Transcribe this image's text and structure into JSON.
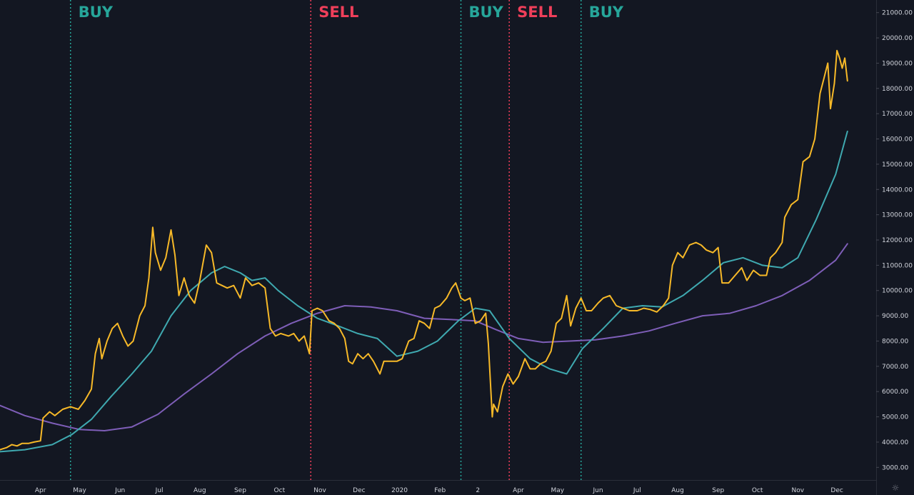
{
  "chart_data": {
    "type": "line",
    "title": "",
    "xlabel": "",
    "ylabel": "",
    "ylim": [
      2500,
      21500
    ],
    "x_range": [
      "2019-03-01",
      "2020-12-31"
    ],
    "y_ticks": [
      "3000.00",
      "4000.00",
      "5000.00",
      "6000.00",
      "7000.00",
      "8000.00",
      "9000.00",
      "10000.00",
      "11000.00",
      "12000.00",
      "13000.00",
      "14000.00",
      "15000.00",
      "16000.00",
      "17000.00",
      "18000.00",
      "19000.00",
      "20000.00",
      "21000.00"
    ],
    "x_ticks": [
      {
        "date": "2019-04-01",
        "label": "Apr"
      },
      {
        "date": "2019-05-01",
        "label": "May"
      },
      {
        "date": "2019-06-01",
        "label": "Jun"
      },
      {
        "date": "2019-07-01",
        "label": "Jul"
      },
      {
        "date": "2019-08-01",
        "label": "Aug"
      },
      {
        "date": "2019-09-01",
        "label": "Sep"
      },
      {
        "date": "2019-10-01",
        "label": "Oct"
      },
      {
        "date": "2019-11-01",
        "label": "Nov"
      },
      {
        "date": "2019-12-01",
        "label": "Dec"
      },
      {
        "date": "2020-01-01",
        "label": "2020"
      },
      {
        "date": "2020-02-01",
        "label": "Feb"
      },
      {
        "date": "2020-03-01",
        "label": "2"
      },
      {
        "date": "2020-04-01",
        "label": "Apr"
      },
      {
        "date": "2020-05-01",
        "label": "May"
      },
      {
        "date": "2020-06-01",
        "label": "Jun"
      },
      {
        "date": "2020-07-01",
        "label": "Jul"
      },
      {
        "date": "2020-08-01",
        "label": "Aug"
      },
      {
        "date": "2020-09-01",
        "label": "Sep"
      },
      {
        "date": "2020-10-01",
        "label": "Oct"
      },
      {
        "date": "2020-11-01",
        "label": "Nov"
      },
      {
        "date": "2020-12-01",
        "label": "Dec"
      }
    ],
    "signals": [
      {
        "label": "BUY",
        "date": "2019-04-24",
        "color": "#26a69a"
      },
      {
        "label": "SELL",
        "date": "2019-10-25",
        "color": "#ef3f5a"
      },
      {
        "label": "BUY",
        "date": "2020-02-17",
        "color": "#26a69a"
      },
      {
        "label": "SELL",
        "date": "2020-03-25",
        "color": "#ef3f5a"
      },
      {
        "label": "BUY",
        "date": "2020-05-19",
        "color": "#26a69a"
      }
    ],
    "series": [
      {
        "color": "#f7b928",
        "points": [
          [
            "2019-03-01",
            3700
          ],
          [
            "2019-03-06",
            3780
          ],
          [
            "2019-03-10",
            3900
          ],
          [
            "2019-03-14",
            3850
          ],
          [
            "2019-03-18",
            3950
          ],
          [
            "2019-03-23",
            3950
          ],
          [
            "2019-03-27",
            4000
          ],
          [
            "2019-04-01",
            4050
          ],
          [
            "2019-04-03",
            4950
          ],
          [
            "2019-04-08",
            5200
          ],
          [
            "2019-04-12",
            5050
          ],
          [
            "2019-04-18",
            5300
          ],
          [
            "2019-04-24",
            5400
          ],
          [
            "2019-04-30",
            5300
          ],
          [
            "2019-05-05",
            5650
          ],
          [
            "2019-05-10",
            6100
          ],
          [
            "2019-05-13",
            7500
          ],
          [
            "2019-05-16",
            8100
          ],
          [
            "2019-05-18",
            7300
          ],
          [
            "2019-05-22",
            8000
          ],
          [
            "2019-05-26",
            8500
          ],
          [
            "2019-05-30",
            8700
          ],
          [
            "2019-06-03",
            8200
          ],
          [
            "2019-06-07",
            7800
          ],
          [
            "2019-06-11",
            8000
          ],
          [
            "2019-06-16",
            9000
          ],
          [
            "2019-06-20",
            9400
          ],
          [
            "2019-06-23",
            10500
          ],
          [
            "2019-06-26",
            12500
          ],
          [
            "2019-06-28",
            11500
          ],
          [
            "2019-07-02",
            10800
          ],
          [
            "2019-07-06",
            11300
          ],
          [
            "2019-07-10",
            12400
          ],
          [
            "2019-07-13",
            11400
          ],
          [
            "2019-07-16",
            9800
          ],
          [
            "2019-07-20",
            10500
          ],
          [
            "2019-07-24",
            9800
          ],
          [
            "2019-07-28",
            9500
          ],
          [
            "2019-08-01",
            10400
          ],
          [
            "2019-08-06",
            11800
          ],
          [
            "2019-08-10",
            11500
          ],
          [
            "2019-08-14",
            10300
          ],
          [
            "2019-08-18",
            10200
          ],
          [
            "2019-08-22",
            10100
          ],
          [
            "2019-08-27",
            10200
          ],
          [
            "2019-09-01",
            9700
          ],
          [
            "2019-09-05",
            10500
          ],
          [
            "2019-09-10",
            10200
          ],
          [
            "2019-09-15",
            10300
          ],
          [
            "2019-09-20",
            10100
          ],
          [
            "2019-09-24",
            8500
          ],
          [
            "2019-09-28",
            8200
          ],
          [
            "2019-10-02",
            8300
          ],
          [
            "2019-10-08",
            8200
          ],
          [
            "2019-10-12",
            8300
          ],
          [
            "2019-10-16",
            8000
          ],
          [
            "2019-10-20",
            8200
          ],
          [
            "2019-10-24",
            7500
          ],
          [
            "2019-10-26",
            9200
          ],
          [
            "2019-10-30",
            9300
          ],
          [
            "2019-11-03",
            9200
          ],
          [
            "2019-11-08",
            8800
          ],
          [
            "2019-11-12",
            8700
          ],
          [
            "2019-11-16",
            8500
          ],
          [
            "2019-11-20",
            8100
          ],
          [
            "2019-11-23",
            7200
          ],
          [
            "2019-11-26",
            7100
          ],
          [
            "2019-11-30",
            7500
          ],
          [
            "2019-12-04",
            7300
          ],
          [
            "2019-12-08",
            7500
          ],
          [
            "2019-12-12",
            7200
          ],
          [
            "2019-12-17",
            6700
          ],
          [
            "2019-12-20",
            7200
          ],
          [
            "2019-12-25",
            7200
          ],
          [
            "2019-12-30",
            7200
          ],
          [
            "2020-01-03",
            7300
          ],
          [
            "2020-01-08",
            8000
          ],
          [
            "2020-01-12",
            8100
          ],
          [
            "2020-01-16",
            8800
          ],
          [
            "2020-01-20",
            8700
          ],
          [
            "2020-01-24",
            8500
          ],
          [
            "2020-01-28",
            9300
          ],
          [
            "2020-02-01",
            9400
          ],
          [
            "2020-02-06",
            9700
          ],
          [
            "2020-02-10",
            10100
          ],
          [
            "2020-02-13",
            10300
          ],
          [
            "2020-02-17",
            9700
          ],
          [
            "2020-02-20",
            9600
          ],
          [
            "2020-02-24",
            9700
          ],
          [
            "2020-02-28",
            8700
          ],
          [
            "2020-03-03",
            8800
          ],
          [
            "2020-03-07",
            9100
          ],
          [
            "2020-03-09",
            7900
          ],
          [
            "2020-03-12",
            5000
          ],
          [
            "2020-03-13",
            5500
          ],
          [
            "2020-03-16",
            5200
          ],
          [
            "2020-03-20",
            6200
          ],
          [
            "2020-03-24",
            6700
          ],
          [
            "2020-03-28",
            6300
          ],
          [
            "2020-04-01",
            6600
          ],
          [
            "2020-04-06",
            7300
          ],
          [
            "2020-04-10",
            6900
          ],
          [
            "2020-04-14",
            6900
          ],
          [
            "2020-04-18",
            7100
          ],
          [
            "2020-04-22",
            7200
          ],
          [
            "2020-04-26",
            7600
          ],
          [
            "2020-04-30",
            8700
          ],
          [
            "2020-05-04",
            8900
          ],
          [
            "2020-05-08",
            9800
          ],
          [
            "2020-05-11",
            8600
          ],
          [
            "2020-05-15",
            9300
          ],
          [
            "2020-05-19",
            9700
          ],
          [
            "2020-05-23",
            9200
          ],
          [
            "2020-05-27",
            9200
          ],
          [
            "2020-06-01",
            9500
          ],
          [
            "2020-06-05",
            9700
          ],
          [
            "2020-06-10",
            9800
          ],
          [
            "2020-06-15",
            9400
          ],
          [
            "2020-06-20",
            9300
          ],
          [
            "2020-06-25",
            9200
          ],
          [
            "2020-07-01",
            9200
          ],
          [
            "2020-07-06",
            9300
          ],
          [
            "2020-07-11",
            9250
          ],
          [
            "2020-07-16",
            9150
          ],
          [
            "2020-07-21",
            9400
          ],
          [
            "2020-07-25",
            9700
          ],
          [
            "2020-07-28",
            11000
          ],
          [
            "2020-08-01",
            11500
          ],
          [
            "2020-08-05",
            11300
          ],
          [
            "2020-08-10",
            11800
          ],
          [
            "2020-08-15",
            11900
          ],
          [
            "2020-08-19",
            11800
          ],
          [
            "2020-08-23",
            11600
          ],
          [
            "2020-08-28",
            11500
          ],
          [
            "2020-09-01",
            11700
          ],
          [
            "2020-09-04",
            10300
          ],
          [
            "2020-09-09",
            10300
          ],
          [
            "2020-09-14",
            10600
          ],
          [
            "2020-09-19",
            10900
          ],
          [
            "2020-09-23",
            10400
          ],
          [
            "2020-09-28",
            10800
          ],
          [
            "2020-10-03",
            10600
          ],
          [
            "2020-10-08",
            10600
          ],
          [
            "2020-10-11",
            11300
          ],
          [
            "2020-10-15",
            11500
          ],
          [
            "2020-10-20",
            11900
          ],
          [
            "2020-10-22",
            12900
          ],
          [
            "2020-10-27",
            13400
          ],
          [
            "2020-11-01",
            13600
          ],
          [
            "2020-11-05",
            15100
          ],
          [
            "2020-11-10",
            15300
          ],
          [
            "2020-11-14",
            16000
          ],
          [
            "2020-11-18",
            17800
          ],
          [
            "2020-11-21",
            18400
          ],
          [
            "2020-11-24",
            19000
          ],
          [
            "2020-11-26",
            17200
          ],
          [
            "2020-11-29",
            18200
          ],
          [
            "2020-12-01",
            19500
          ],
          [
            "2020-12-03",
            19200
          ],
          [
            "2020-12-05",
            18800
          ],
          [
            "2020-12-07",
            19200
          ],
          [
            "2020-12-09",
            18300
          ]
        ]
      },
      {
        "color": "#3fa9b0",
        "points": [
          [
            "2019-03-01",
            3620
          ],
          [
            "2019-03-20",
            3700
          ],
          [
            "2019-04-10",
            3900
          ],
          [
            "2019-04-25",
            4300
          ],
          [
            "2019-05-10",
            4900
          ],
          [
            "2019-05-25",
            5800
          ],
          [
            "2019-06-10",
            6700
          ],
          [
            "2019-06-25",
            7600
          ],
          [
            "2019-07-10",
            9000
          ],
          [
            "2019-07-25",
            10000
          ],
          [
            "2019-08-10",
            10700
          ],
          [
            "2019-08-20",
            10950
          ],
          [
            "2019-09-01",
            10700
          ],
          [
            "2019-09-10",
            10400
          ],
          [
            "2019-09-20",
            10500
          ],
          [
            "2019-09-30",
            10000
          ],
          [
            "2019-10-15",
            9400
          ],
          [
            "2019-10-30",
            8900
          ],
          [
            "2019-11-15",
            8600
          ],
          [
            "2019-11-30",
            8300
          ],
          [
            "2019-12-15",
            8100
          ],
          [
            "2019-12-30",
            7400
          ],
          [
            "2020-01-15",
            7600
          ],
          [
            "2020-01-30",
            8000
          ],
          [
            "2020-02-15",
            8800
          ],
          [
            "2020-02-28",
            9300
          ],
          [
            "2020-03-10",
            9200
          ],
          [
            "2020-03-25",
            8100
          ],
          [
            "2020-04-10",
            7300
          ],
          [
            "2020-04-25",
            6900
          ],
          [
            "2020-05-08",
            6700
          ],
          [
            "2020-05-20",
            7700
          ],
          [
            "2020-06-05",
            8500
          ],
          [
            "2020-06-20",
            9300
          ],
          [
            "2020-07-05",
            9400
          ],
          [
            "2020-07-20",
            9350
          ],
          [
            "2020-08-05",
            9800
          ],
          [
            "2020-08-20",
            10400
          ],
          [
            "2020-09-05",
            11100
          ],
          [
            "2020-09-20",
            11300
          ],
          [
            "2020-10-05",
            11000
          ],
          [
            "2020-10-20",
            10900
          ],
          [
            "2020-11-01",
            11300
          ],
          [
            "2020-11-15",
            12800
          ],
          [
            "2020-11-30",
            14600
          ],
          [
            "2020-12-09",
            16300
          ]
        ]
      },
      {
        "color": "#7e5eb8",
        "points": [
          [
            "2019-03-01",
            5450
          ],
          [
            "2019-03-20",
            5050
          ],
          [
            "2019-04-10",
            4750
          ],
          [
            "2019-05-01",
            4500
          ],
          [
            "2019-05-20",
            4450
          ],
          [
            "2019-06-10",
            4600
          ],
          [
            "2019-06-30",
            5100
          ],
          [
            "2019-07-20",
            5900
          ],
          [
            "2019-08-10",
            6700
          ],
          [
            "2019-08-30",
            7500
          ],
          [
            "2019-09-20",
            8200
          ],
          [
            "2019-10-10",
            8700
          ],
          [
            "2019-10-30",
            9100
          ],
          [
            "2019-11-20",
            9400
          ],
          [
            "2019-12-10",
            9350
          ],
          [
            "2019-12-30",
            9200
          ],
          [
            "2020-01-20",
            8900
          ],
          [
            "2020-02-10",
            8850
          ],
          [
            "2020-02-28",
            8800
          ],
          [
            "2020-03-15",
            8450
          ],
          [
            "2020-04-01",
            8100
          ],
          [
            "2020-04-20",
            7950
          ],
          [
            "2020-05-10",
            8000
          ],
          [
            "2020-05-30",
            8050
          ],
          [
            "2020-06-20",
            8200
          ],
          [
            "2020-07-10",
            8400
          ],
          [
            "2020-07-30",
            8700
          ],
          [
            "2020-08-20",
            9000
          ],
          [
            "2020-09-10",
            9100
          ],
          [
            "2020-09-30",
            9400
          ],
          [
            "2020-10-20",
            9800
          ],
          [
            "2020-11-10",
            10400
          ],
          [
            "2020-11-30",
            11200
          ],
          [
            "2020-12-09",
            11850
          ]
        ]
      }
    ]
  }
}
